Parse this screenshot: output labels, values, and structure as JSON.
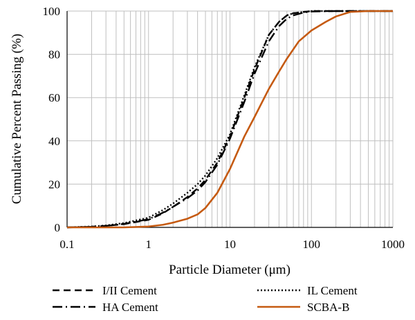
{
  "chart_data": {
    "type": "line",
    "title": "",
    "xlabel": "Particle Diameter (μm)",
    "ylabel": "Cumulative Percent Passing (%)",
    "x_scale": "log",
    "xlim": [
      0.1,
      1000
    ],
    "ylim": [
      0,
      100
    ],
    "grid": true,
    "legend_position": "bottom",
    "x_ticks": [
      0.1,
      1,
      10,
      100,
      1000
    ],
    "x_tick_labels": [
      "0.1",
      "1",
      "10",
      "100",
      "1000"
    ],
    "y_ticks": [
      0,
      20,
      40,
      60,
      80,
      100
    ],
    "y_tick_labels": [
      "0",
      "20",
      "40",
      "60",
      "80",
      "100"
    ],
    "series": [
      {
        "name": "I/II Cement",
        "style": "dashed",
        "color": "#000000",
        "x": [
          0.1,
          0.2,
          0.3,
          0.5,
          1,
          1.5,
          2,
          3,
          4,
          5,
          7,
          10,
          15,
          20,
          30,
          40,
          50,
          60,
          80,
          100,
          200,
          1000
        ],
        "y": [
          0,
          0.3,
          0.7,
          1.5,
          3.5,
          6.5,
          9.5,
          14,
          18,
          22,
          30,
          42,
          60,
          73,
          89,
          95,
          98,
          99,
          99.6,
          100,
          100,
          100
        ]
      },
      {
        "name": "IL Cement",
        "style": "dotted",
        "color": "#000000",
        "x": [
          0.1,
          0.2,
          0.3,
          0.5,
          1,
          1.5,
          2,
          3,
          4,
          5,
          7,
          10,
          15,
          20,
          30,
          40,
          50,
          60,
          80,
          100,
          200,
          1000
        ],
        "y": [
          0,
          0.4,
          0.9,
          2,
          4.5,
          8,
          11,
          16,
          20,
          24,
          32,
          43,
          61,
          74,
          89,
          95,
          98,
          99,
          99.6,
          100,
          100,
          100
        ]
      },
      {
        "name": "HA Cement",
        "style": "dash-dot",
        "color": "#000000",
        "x": [
          0.1,
          0.2,
          0.3,
          0.5,
          1,
          1.5,
          2,
          3,
          4,
          5,
          7,
          10,
          15,
          20,
          30,
          40,
          50,
          60,
          80,
          100,
          200,
          1000
        ],
        "y": [
          0,
          0.3,
          0.7,
          1.6,
          3.8,
          6.8,
          9.5,
          13.5,
          17,
          21,
          29,
          41,
          58,
          71,
          86,
          93,
          96.5,
          98,
          99.3,
          99.8,
          100,
          100
        ]
      },
      {
        "name": "SCBA-B",
        "style": "solid",
        "color": "#c55a11",
        "x": [
          0.1,
          0.5,
          1,
          1.5,
          2,
          3,
          4,
          5,
          7,
          10,
          15,
          20,
          30,
          40,
          50,
          70,
          100,
          150,
          200,
          300,
          500,
          1000
        ],
        "y": [
          0,
          0,
          0.4,
          1.2,
          2.2,
          4,
          6,
          9,
          16,
          27,
          42,
          51,
          64,
          72,
          78,
          86,
          91,
          95,
          97.5,
          99.6,
          100,
          100
        ]
      }
    ]
  }
}
